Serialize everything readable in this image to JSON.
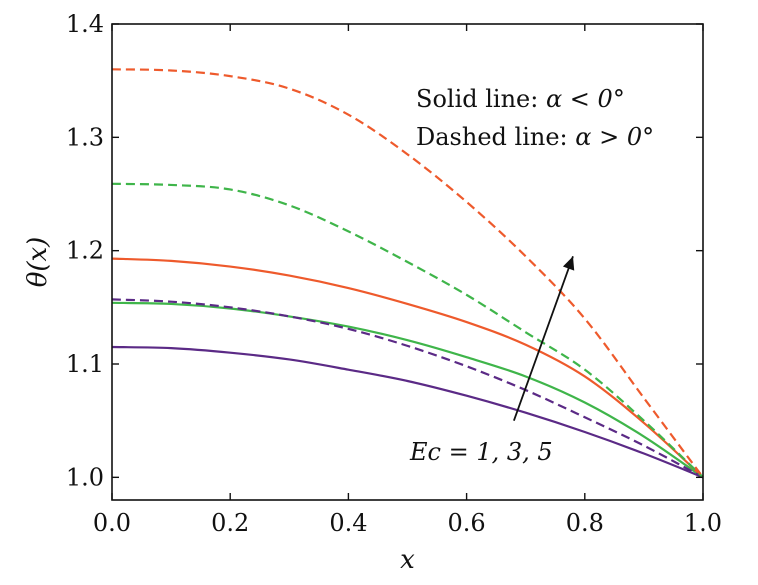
{
  "chart_data": {
    "type": "line",
    "title": "",
    "xlabel": "x",
    "ylabel": "θ(x)",
    "xlim": [
      0.0,
      1.0
    ],
    "ylim": [
      0.98,
      1.4
    ],
    "x_ticks": [
      "0.0",
      "0.2",
      "0.4",
      "0.6",
      "0.8",
      "1.0"
    ],
    "y_ticks": [
      "1.0",
      "1.1",
      "1.2",
      "1.3",
      "1.4"
    ],
    "grid": false,
    "legend_lines": [
      {
        "text": "Solid line: ",
        "math": "α < 0°"
      },
      {
        "text": "Dashed line: ",
        "math": "α > 0°"
      }
    ],
    "annotation": {
      "label": "Ec = 1, 3, 5",
      "arrow_from": [
        0.68,
        1.05
      ],
      "arrow_to": [
        0.78,
        1.195
      ]
    },
    "colors": {
      "purple": "#5b2a86",
      "green": "#3fb54a",
      "orange": "#ee5a2c"
    },
    "x": [
      0.0,
      0.1,
      0.2,
      0.3,
      0.4,
      0.5,
      0.6,
      0.7,
      0.8,
      0.9,
      1.0
    ],
    "series": [
      {
        "style": "solid",
        "color": "#5b2a86",
        "values": [
          1.115,
          1.114,
          1.11,
          1.104,
          1.095,
          1.085,
          1.072,
          1.057,
          1.04,
          1.021,
          1.0
        ]
      },
      {
        "style": "solid",
        "color": "#3fb54a",
        "values": [
          1.154,
          1.153,
          1.149,
          1.142,
          1.133,
          1.121,
          1.106,
          1.089,
          1.066,
          1.036,
          1.0
        ]
      },
      {
        "style": "solid",
        "color": "#ee5a2c",
        "values": [
          1.193,
          1.191,
          1.186,
          1.178,
          1.167,
          1.153,
          1.137,
          1.117,
          1.089,
          1.048,
          1.0
        ]
      },
      {
        "style": "dashed",
        "color": "#5b2a86",
        "values": [
          1.157,
          1.155,
          1.15,
          1.142,
          1.131,
          1.116,
          1.098,
          1.077,
          1.053,
          1.028,
          1.0
        ]
      },
      {
        "style": "dashed",
        "color": "#3fb54a",
        "values": [
          1.259,
          1.258,
          1.254,
          1.24,
          1.217,
          1.19,
          1.161,
          1.128,
          1.095,
          1.05,
          1.0
        ]
      },
      {
        "style": "dashed",
        "color": "#ee5a2c",
        "values": [
          1.36,
          1.359,
          1.354,
          1.343,
          1.32,
          1.285,
          1.243,
          1.195,
          1.14,
          1.07,
          1.0
        ]
      }
    ]
  }
}
